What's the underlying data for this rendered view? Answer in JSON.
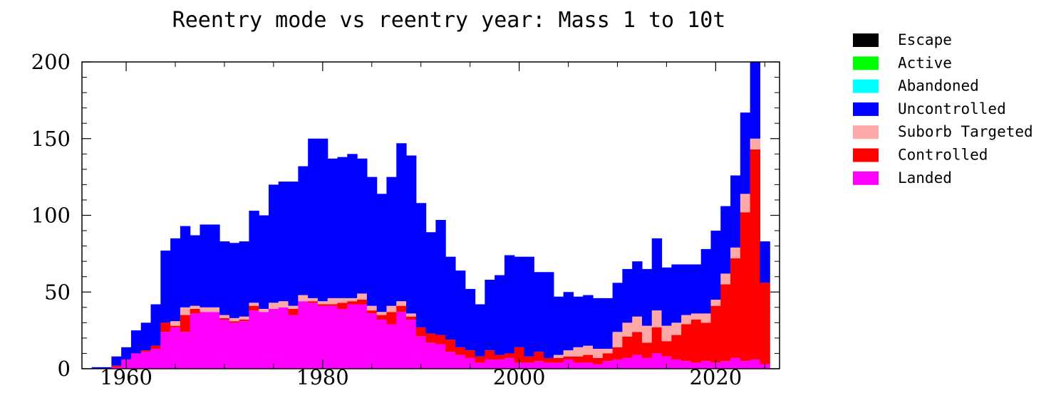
{
  "chart_data": {
    "type": "bar",
    "stacked": true,
    "title": "Reentry mode vs reentry year: Mass 1 to 10t",
    "xlabel": "",
    "ylabel": "",
    "xlim": [
      1955.5,
      2026.5
    ],
    "ylim": [
      0,
      200
    ],
    "x_ticks": [
      1960,
      1980,
      2000,
      2020
    ],
    "x_tick_labels": [
      "1960",
      "1980",
      "2000",
      "2020"
    ],
    "y_ticks": [
      0,
      50,
      100,
      150,
      200
    ],
    "y_tick_labels": [
      "0",
      "50",
      "100",
      "150",
      "200"
    ],
    "grid": false,
    "legend_position": "right",
    "x": [
      1957,
      1958,
      1959,
      1960,
      1961,
      1962,
      1963,
      1964,
      1965,
      1966,
      1967,
      1968,
      1969,
      1970,
      1971,
      1972,
      1973,
      1974,
      1975,
      1976,
      1977,
      1978,
      1979,
      1980,
      1981,
      1982,
      1983,
      1984,
      1985,
      1986,
      1987,
      1988,
      1989,
      1990,
      1991,
      1992,
      1993,
      1994,
      1995,
      1996,
      1997,
      1998,
      1999,
      2000,
      2001,
      2002,
      2003,
      2004,
      2005,
      2006,
      2007,
      2008,
      2009,
      2010,
      2011,
      2012,
      2013,
      2014,
      2015,
      2016,
      2017,
      2018,
      2019,
      2020,
      2021,
      2022,
      2023,
      2024,
      2025
    ],
    "series": [
      {
        "name": "Landed",
        "color": "#ff00ff",
        "values": [
          0,
          0,
          1,
          6,
          10,
          11,
          13,
          24,
          27,
          24,
          36,
          37,
          37,
          32,
          30,
          31,
          38,
          37,
          39,
          40,
          35,
          44,
          43,
          41,
          41,
          39,
          42,
          42,
          36,
          32,
          29,
          37,
          32,
          21,
          17,
          16,
          11,
          9,
          7,
          4,
          6,
          6,
          7,
          4,
          4,
          5,
          4,
          4,
          6,
          4,
          4,
          3,
          5,
          6,
          7,
          9,
          7,
          10,
          8,
          6,
          5,
          4,
          5,
          4,
          5,
          7,
          5,
          6,
          3
        ]
      },
      {
        "name": "Controlled",
        "color": "#ff0000",
        "values": [
          0,
          0,
          1,
          0,
          0,
          1,
          2,
          6,
          1,
          11,
          3,
          0,
          0,
          1,
          1,
          1,
          3,
          0,
          0,
          0,
          4,
          0,
          1,
          1,
          1,
          4,
          2,
          3,
          2,
          3,
          8,
          4,
          2,
          6,
          6,
          6,
          8,
          5,
          5,
          4,
          6,
          3,
          3,
          10,
          4,
          6,
          3,
          3,
          2,
          4,
          5,
          4,
          5,
          8,
          14,
          15,
          10,
          17,
          10,
          16,
          24,
          28,
          25,
          37,
          50,
          65,
          97,
          137,
          53
        ]
      },
      {
        "name": "Suborb Targeted",
        "color": "#ffa8a8",
        "values": [
          0,
          0,
          0,
          0,
          0,
          0,
          0,
          0,
          3,
          5,
          2,
          3,
          3,
          2,
          2,
          2,
          2,
          2,
          4,
          4,
          2,
          4,
          2,
          2,
          4,
          3,
          2,
          4,
          3,
          2,
          4,
          3,
          2,
          0,
          0,
          0,
          0,
          0,
          0,
          0,
          0,
          0,
          0,
          0,
          0,
          0,
          0,
          2,
          4,
          6,
          6,
          6,
          3,
          10,
          9,
          10,
          11,
          11,
          10,
          8,
          6,
          4,
          6,
          4,
          7,
          7,
          12,
          7,
          0
        ]
      },
      {
        "name": "Uncontrolled",
        "color": "#0000ff",
        "values": [
          1,
          1,
          6,
          8,
          15,
          18,
          27,
          47,
          54,
          53,
          46,
          54,
          54,
          48,
          49,
          49,
          60,
          61,
          77,
          78,
          81,
          84,
          104,
          106,
          91,
          92,
          94,
          88,
          84,
          77,
          84,
          103,
          103,
          81,
          66,
          75,
          54,
          50,
          40,
          34,
          46,
          52,
          64,
          59,
          65,
          52,
          56,
          38,
          38,
          33,
          33,
          33,
          33,
          32,
          35,
          36,
          37,
          47,
          38,
          38,
          33,
          32,
          42,
          45,
          44,
          47,
          53,
          50,
          27
        ]
      },
      {
        "name": "Abandoned",
        "color": "#00ffff",
        "values": [
          0,
          0,
          0,
          0,
          0,
          0,
          0,
          0,
          0,
          0,
          0,
          0,
          0,
          0,
          0,
          0,
          0,
          0,
          0,
          0,
          0,
          0,
          0,
          0,
          0,
          0,
          0,
          0,
          0,
          0,
          0,
          0,
          0,
          0,
          0,
          0,
          0,
          0,
          0,
          0,
          0,
          0,
          0,
          0,
          0,
          0,
          0,
          0,
          0,
          0,
          0,
          0,
          0,
          0,
          0,
          0,
          0,
          0,
          0,
          0,
          0,
          0,
          0,
          0,
          0,
          0,
          0,
          0,
          0
        ]
      },
      {
        "name": "Active",
        "color": "#00ff00",
        "values": [
          0,
          0,
          0,
          0,
          0,
          0,
          0,
          0,
          0,
          0,
          0,
          0,
          0,
          0,
          0,
          0,
          0,
          0,
          0,
          0,
          0,
          0,
          0,
          0,
          0,
          0,
          0,
          0,
          0,
          0,
          0,
          0,
          0,
          0,
          0,
          0,
          0,
          0,
          0,
          0,
          0,
          0,
          0,
          0,
          0,
          0,
          0,
          0,
          0,
          0,
          0,
          0,
          0,
          0,
          0,
          0,
          0,
          0,
          0,
          0,
          0,
          0,
          0,
          0,
          0,
          0,
          0,
          0,
          0
        ]
      },
      {
        "name": "Escape",
        "color": "#000000",
        "values": [
          0,
          0,
          0,
          0,
          0,
          0,
          0,
          0,
          0,
          0,
          0,
          0,
          0,
          0,
          0,
          0,
          0,
          0,
          0,
          0,
          0,
          0,
          0,
          0,
          0,
          0,
          0,
          0,
          0,
          0,
          0,
          0,
          0,
          0,
          0,
          0,
          0,
          0,
          0,
          0,
          0,
          0,
          0,
          0,
          0,
          0,
          0,
          0,
          0,
          0,
          0,
          0,
          0,
          0,
          0,
          0,
          0,
          0,
          0,
          0,
          0,
          0,
          0,
          0,
          0,
          0,
          0,
          0,
          0
        ]
      }
    ],
    "legend": [
      {
        "name": "Escape",
        "color": "#000000"
      },
      {
        "name": "Active",
        "color": "#00ff00"
      },
      {
        "name": "Abandoned",
        "color": "#00ffff"
      },
      {
        "name": "Uncontrolled",
        "color": "#0000ff"
      },
      {
        "name": "Suborb Targeted",
        "color": "#ffa8a8"
      },
      {
        "name": "Controlled",
        "color": "#ff0000"
      },
      {
        "name": "Landed",
        "color": "#ff00ff"
      }
    ]
  }
}
